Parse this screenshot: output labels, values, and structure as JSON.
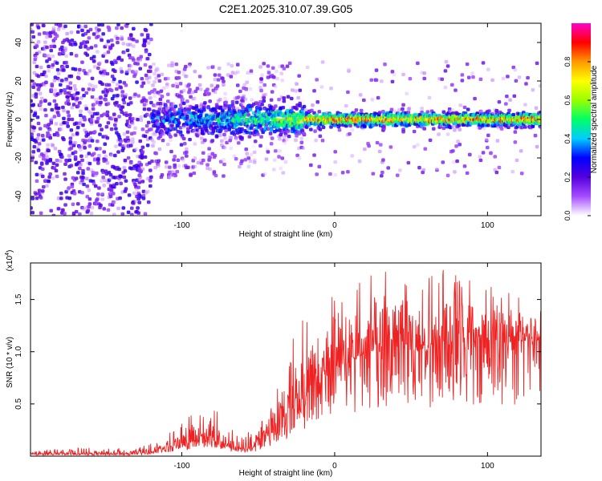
{
  "title": "C2E1.2025.310.07.39.G05",
  "chart_data": [
    {
      "type": "heatmap",
      "name": "spectrogram",
      "xlabel": "Height of straight line (km)",
      "ylabel": "Frequency (Hz)",
      "xlim": [
        -199,
        135
      ],
      "ylim": [
        -50,
        50
      ],
      "xticks": [
        -100,
        0,
        100
      ],
      "yticks": [
        -40,
        -20,
        0,
        20,
        40
      ],
      "colorbar": {
        "label": "Normalized spectral amplitude",
        "range": [
          0.0,
          1.0
        ],
        "ticks": [
          0.0,
          0.2,
          0.4,
          0.6,
          0.8
        ],
        "tick_labels": [
          "0.0",
          "0.2",
          "0.4",
          "0.6",
          "0.8"
        ],
        "colors": [
          "#ffffff",
          "#a64dff",
          "#5500dd",
          "#0000ff",
          "#00ccff",
          "#00ff66",
          "#99ff00",
          "#ffff00",
          "#ff9900",
          "#ff0000",
          "#ff00cc"
        ]
      },
      "features": [
        {
          "region": "x < -120 km",
          "description": "diffuse low-amplitude noise across all frequencies"
        },
        {
          "region": "-120 to -20 km",
          "description": "band about +/-10 Hz, amplitude 0.2-0.5"
        },
        {
          "region": "x > -20 km",
          "description": "narrow band near 0 Hz, peak amplitude about 0.9"
        }
      ]
    },
    {
      "type": "line",
      "name": "snr",
      "xlabel": "Height of straight line (km)",
      "ylabel": "SNR (10 * v/v)",
      "yscale_label": "(x10",
      "yscale_exp": "4",
      "scale_factor": 10000,
      "xlim": [
        -199,
        135
      ],
      "ylim": [
        0,
        1.85
      ],
      "xticks": [
        -100,
        0,
        100
      ],
      "yticks": [
        0.5,
        1.0,
        1.5
      ],
      "ytick_labels": [
        "0.5",
        "1.0",
        "1.5"
      ],
      "color": "#ee2222",
      "x_envelope": [
        -199,
        -170,
        -150,
        -130,
        -120,
        -110,
        -100,
        -90,
        -80,
        -70,
        -60,
        -50,
        -40,
        -30,
        -25,
        -20,
        -10,
        0,
        10,
        20,
        30,
        40,
        50,
        60,
        70,
        80,
        90,
        100,
        110,
        120,
        130,
        135
      ],
      "y_baseline": [
        0.02,
        0.02,
        0.02,
        0.02,
        0.04,
        0.08,
        0.12,
        0.14,
        0.15,
        0.09,
        0.07,
        0.1,
        0.18,
        0.35,
        0.5,
        0.55,
        0.7,
        0.85,
        0.9,
        0.95,
        1.0,
        1.0,
        1.0,
        1.02,
        1.05,
        1.08,
        1.1,
        1.1,
        1.08,
        1.1,
        1.1,
        1.1
      ],
      "y_peak": [
        0.05,
        0.08,
        0.08,
        0.08,
        0.12,
        0.2,
        0.35,
        0.45,
        0.5,
        0.28,
        0.2,
        0.3,
        0.55,
        1.0,
        1.5,
        1.35,
        1.5,
        1.6,
        1.62,
        1.75,
        1.85,
        1.8,
        1.85,
        1.72,
        1.85,
        1.85,
        1.7,
        1.65,
        1.55,
        1.6,
        1.5,
        1.45
      ],
      "samples": 1300
    }
  ]
}
